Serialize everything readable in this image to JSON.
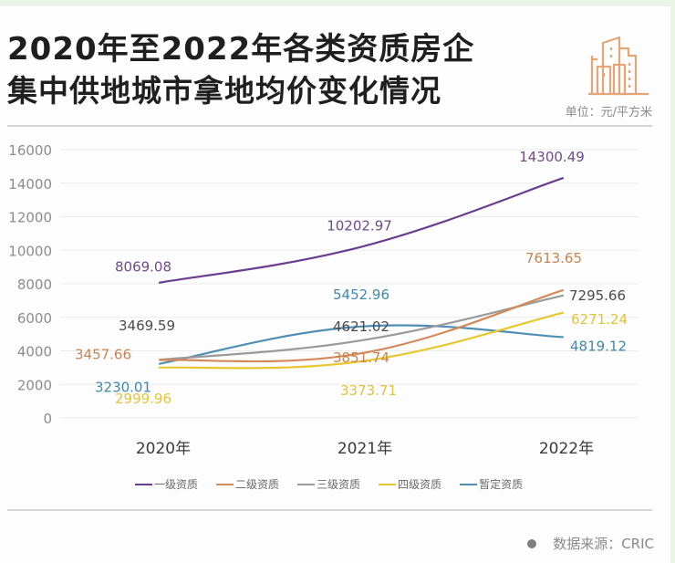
{
  "header": {
    "title_line1": "2020年至2022年各类资质房企",
    "title_line2": "集中供地城市拿地均价变化情况",
    "unit": "单位：元/平方米",
    "icon": "buildings-icon"
  },
  "footer": {
    "source": "数据来源：CRIC"
  },
  "chart_data": {
    "type": "line",
    "title": "2020年至2022年各类资质房企集中供地城市拿地均价变化情况",
    "xlabel": "",
    "ylabel": "元/平方米",
    "categories": [
      "2020年",
      "2021年",
      "2022年"
    ],
    "ylim": [
      0,
      16000
    ],
    "yticks": [
      "0",
      "2000",
      "4000",
      "6000",
      "8000",
      "10000",
      "12000",
      "14000",
      "16000"
    ],
    "grid": true,
    "legend_position": "bottom",
    "series": [
      {
        "name": "一级资质",
        "color": "#6b3d8f",
        "values": [
          8069.08,
          10202.97,
          14300.49
        ],
        "labels": [
          "8069.08",
          "10202.97",
          "14300.49"
        ]
      },
      {
        "name": "二级资质",
        "color": "#d4895a",
        "values": [
          3457.66,
          3851.74,
          7613.65
        ],
        "labels": [
          "3457.66",
          "3851.74",
          "7613.65"
        ]
      },
      {
        "name": "三级资质",
        "color": "#9a9a9a",
        "values": [
          3469.59,
          4621.02,
          7295.66
        ],
        "labels": [
          "3469.59",
          "4621.02",
          "7295.66"
        ]
      },
      {
        "name": "四级资质",
        "color": "#e8c62e",
        "values": [
          2999.96,
          3373.71,
          6271.24
        ],
        "labels": [
          "2999.96",
          "3373.71",
          "6271.24"
        ]
      },
      {
        "name": "暂定资质",
        "color": "#4f8fb3",
        "values": [
          3230.01,
          5452.96,
          4819.12
        ],
        "labels": [
          "3230.01",
          "5452.96",
          "4819.12"
        ]
      }
    ],
    "label_colors": {
      "一级资质": "#6f4a8c",
      "二级资质": "#c98451",
      "三级资质": "#4a4a4a",
      "四级资质": "#e3c33a",
      "暂定资质": "#3f88ad"
    }
  }
}
